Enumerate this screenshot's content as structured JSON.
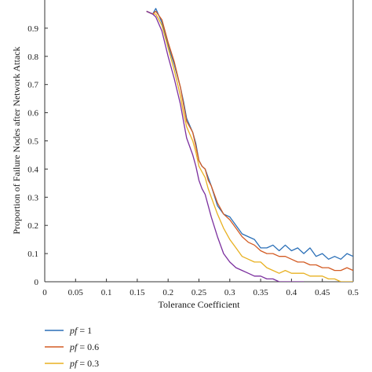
{
  "chart_data": {
    "type": "line",
    "title": "",
    "xlabel": "Tolerance Coefficient",
    "ylabel": "Proportion of Failure Nodes after Network Attack",
    "xlim": [
      0,
      0.5
    ],
    "ylim": [
      0,
      1
    ],
    "xticks": [
      0,
      0.05,
      0.1,
      0.15,
      0.2,
      0.25,
      0.3,
      0.35,
      0.4,
      0.45,
      0.5
    ],
    "yticks": [
      0,
      0.1,
      0.2,
      0.3,
      0.4,
      0.5,
      0.6,
      0.7,
      0.8,
      0.9
    ],
    "xtick_labels": [
      "0",
      "0.05",
      "0.1",
      "0.15",
      "0.2",
      "0.25",
      "0.3",
      "0.35",
      "0.4",
      "0.45",
      "0.5"
    ],
    "ytick_labels": [
      "0",
      "0.1",
      "0.2",
      "0.3",
      "0.4",
      "0.5",
      "0.6",
      "0.7",
      "0.8",
      "0.9"
    ],
    "grid": false,
    "legend_position": "below-left",
    "series": [
      {
        "name": "pf = 1",
        "label_prefix": "pf",
        "label_suffix": " = 1",
        "color": "#2a6fb7",
        "x": [
          0.165,
          0.175,
          0.18,
          0.19,
          0.2,
          0.21,
          0.22,
          0.225,
          0.23,
          0.24,
          0.245,
          0.25,
          0.255,
          0.26,
          0.265,
          0.27,
          0.28,
          0.29,
          0.3,
          0.31,
          0.32,
          0.33,
          0.34,
          0.35,
          0.36,
          0.37,
          0.38,
          0.39,
          0.4,
          0.41,
          0.42,
          0.43,
          0.44,
          0.45,
          0.46,
          0.47,
          0.48,
          0.49,
          0.5
        ],
        "y": [
          0.96,
          0.95,
          0.97,
          0.92,
          0.84,
          0.77,
          0.69,
          0.64,
          0.58,
          0.53,
          0.49,
          0.43,
          0.41,
          0.4,
          0.37,
          0.34,
          0.27,
          0.24,
          0.23,
          0.2,
          0.17,
          0.16,
          0.15,
          0.12,
          0.12,
          0.13,
          0.11,
          0.13,
          0.11,
          0.12,
          0.1,
          0.12,
          0.09,
          0.1,
          0.08,
          0.09,
          0.08,
          0.1,
          0.09
        ]
      },
      {
        "name": "pf = 0.6",
        "label_prefix": "pf",
        "label_suffix": " = 0.6",
        "color": "#d35b23",
        "x": [
          0.165,
          0.175,
          0.18,
          0.19,
          0.2,
          0.21,
          0.22,
          0.225,
          0.23,
          0.24,
          0.245,
          0.25,
          0.255,
          0.26,
          0.265,
          0.27,
          0.28,
          0.29,
          0.3,
          0.31,
          0.32,
          0.33,
          0.34,
          0.35,
          0.36,
          0.37,
          0.38,
          0.39,
          0.4,
          0.41,
          0.42,
          0.43,
          0.44,
          0.45,
          0.46,
          0.47,
          0.48,
          0.49,
          0.5
        ],
        "y": [
          0.96,
          0.95,
          0.96,
          0.93,
          0.85,
          0.78,
          0.69,
          0.63,
          0.57,
          0.53,
          0.48,
          0.43,
          0.41,
          0.4,
          0.36,
          0.34,
          0.28,
          0.24,
          0.22,
          0.19,
          0.16,
          0.14,
          0.13,
          0.11,
          0.1,
          0.1,
          0.09,
          0.09,
          0.08,
          0.07,
          0.07,
          0.06,
          0.06,
          0.05,
          0.05,
          0.04,
          0.04,
          0.05,
          0.04
        ]
      },
      {
        "name": "pf = 0.3",
        "label_prefix": "pf",
        "label_suffix": " = 0.3",
        "color": "#e8b020",
        "x": [
          0.165,
          0.175,
          0.18,
          0.19,
          0.2,
          0.21,
          0.22,
          0.225,
          0.23,
          0.24,
          0.245,
          0.25,
          0.255,
          0.26,
          0.265,
          0.27,
          0.28,
          0.29,
          0.3,
          0.31,
          0.32,
          0.33,
          0.34,
          0.35,
          0.36,
          0.37,
          0.38,
          0.39,
          0.4,
          0.41,
          0.42,
          0.43,
          0.44,
          0.45,
          0.46,
          0.47,
          0.48,
          0.49,
          0.5
        ],
        "y": [
          0.96,
          0.95,
          0.95,
          0.91,
          0.83,
          0.75,
          0.66,
          0.6,
          0.55,
          0.5,
          0.46,
          0.41,
          0.39,
          0.37,
          0.33,
          0.3,
          0.24,
          0.19,
          0.15,
          0.12,
          0.09,
          0.08,
          0.07,
          0.07,
          0.05,
          0.04,
          0.03,
          0.04,
          0.03,
          0.03,
          0.03,
          0.02,
          0.02,
          0.02,
          0.01,
          0.01,
          0.0,
          0.0,
          0.0
        ]
      },
      {
        "name": "",
        "color": "#7b2f9e",
        "x": [
          0.165,
          0.175,
          0.18,
          0.19,
          0.2,
          0.21,
          0.22,
          0.225,
          0.23,
          0.24,
          0.245,
          0.25,
          0.255,
          0.26,
          0.265,
          0.27,
          0.28,
          0.29,
          0.3,
          0.31,
          0.32,
          0.33,
          0.34,
          0.35,
          0.36,
          0.37,
          0.38,
          0.39,
          0.4,
          0.41,
          0.42
        ],
        "y": [
          0.96,
          0.95,
          0.94,
          0.89,
          0.8,
          0.72,
          0.63,
          0.57,
          0.51,
          0.45,
          0.41,
          0.36,
          0.33,
          0.31,
          0.27,
          0.23,
          0.16,
          0.1,
          0.07,
          0.05,
          0.04,
          0.03,
          0.02,
          0.02,
          0.01,
          0.01,
          0.0,
          0.0,
          0.0,
          0.0,
          0.0
        ]
      }
    ]
  }
}
